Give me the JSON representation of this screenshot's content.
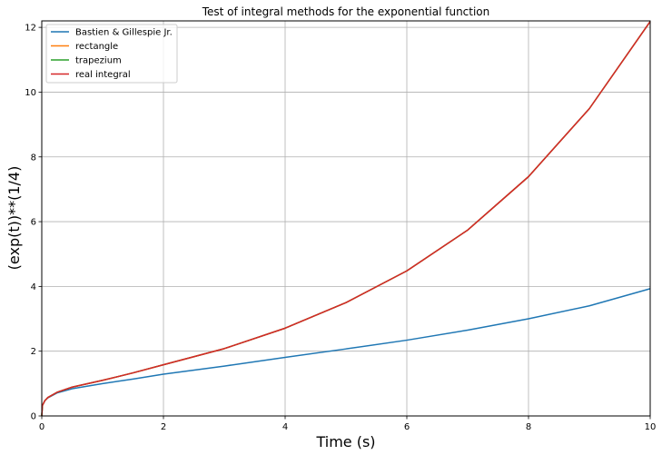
{
  "chart_data": {
    "type": "line",
    "title": "Test of integral methods for the exponential function",
    "xlabel": "Time (s)",
    "ylabel": "(exp(t))**(1/4)",
    "xlim": [
      0,
      10
    ],
    "ylim": [
      0,
      12.2
    ],
    "xticks": [
      "0",
      "2",
      "4",
      "6",
      "8",
      "10"
    ],
    "yticks": [
      "0",
      "2",
      "4",
      "6",
      "8",
      "10",
      "12"
    ],
    "grid": true,
    "legend_position": "top-left",
    "series": [
      {
        "name": "Bastien & Gillespie Jr.",
        "color": "#1f77b4",
        "x": [
          0,
          0.01,
          0.05,
          0.1,
          0.25,
          0.5,
          1,
          1.5,
          2,
          3,
          4,
          5,
          6,
          7,
          8,
          9,
          10
        ],
        "y": [
          0,
          0.32,
          0.47,
          0.56,
          0.71,
          0.84,
          1.0,
          1.14,
          1.29,
          1.54,
          1.81,
          2.07,
          2.34,
          2.65,
          3.0,
          3.4,
          3.93
        ]
      },
      {
        "name": "rectangle",
        "color": "#ff7f0e",
        "x": [
          0,
          0.01,
          0.05,
          0.1,
          0.25,
          0.5,
          1,
          1.5,
          2,
          3,
          4,
          5,
          6,
          7,
          8,
          9,
          10
        ],
        "y": [
          0,
          0.32,
          0.47,
          0.57,
          0.73,
          0.89,
          1.1,
          1.33,
          1.58,
          2.08,
          2.71,
          3.5,
          4.48,
          5.74,
          7.39,
          9.49,
          12.18
        ]
      },
      {
        "name": "trapezium",
        "color": "#2ca02c",
        "x": [
          0,
          0.01,
          0.05,
          0.1,
          0.25,
          0.5,
          1,
          1.5,
          2,
          3,
          4,
          5,
          6,
          7,
          8,
          9,
          10
        ],
        "y": [
          0,
          0.32,
          0.47,
          0.57,
          0.73,
          0.89,
          1.1,
          1.33,
          1.58,
          2.08,
          2.71,
          3.5,
          4.48,
          5.74,
          7.39,
          9.49,
          12.18
        ]
      },
      {
        "name": "real integral",
        "color": "#d62728",
        "x": [
          0,
          0.01,
          0.05,
          0.1,
          0.25,
          0.5,
          1,
          1.5,
          2,
          3,
          4,
          5,
          6,
          7,
          8,
          9,
          10
        ],
        "y": [
          0,
          0.32,
          0.47,
          0.57,
          0.73,
          0.89,
          1.1,
          1.33,
          1.58,
          2.08,
          2.71,
          3.5,
          4.48,
          5.74,
          7.39,
          9.49,
          12.18
        ]
      }
    ]
  }
}
